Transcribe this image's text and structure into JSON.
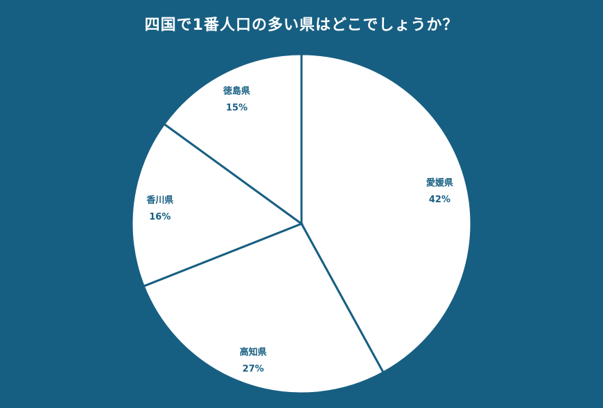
{
  "chart_data": {
    "type": "pie",
    "title": "四国で1番人口の多い県はどこでしょうか？",
    "start": "top",
    "direction": "clockwise",
    "categories": [
      "愛媛県",
      "高知県",
      "香川県",
      "徳島県"
    ],
    "values": [
      42,
      27,
      16,
      15
    ],
    "value_labels": [
      "42%",
      "27%",
      "16%",
      "15%"
    ],
    "colors": {
      "background": "#175f82",
      "slice": "#ffffff",
      "stroke": "#175f82",
      "label": "#175f82",
      "title": "#ffffff"
    }
  }
}
